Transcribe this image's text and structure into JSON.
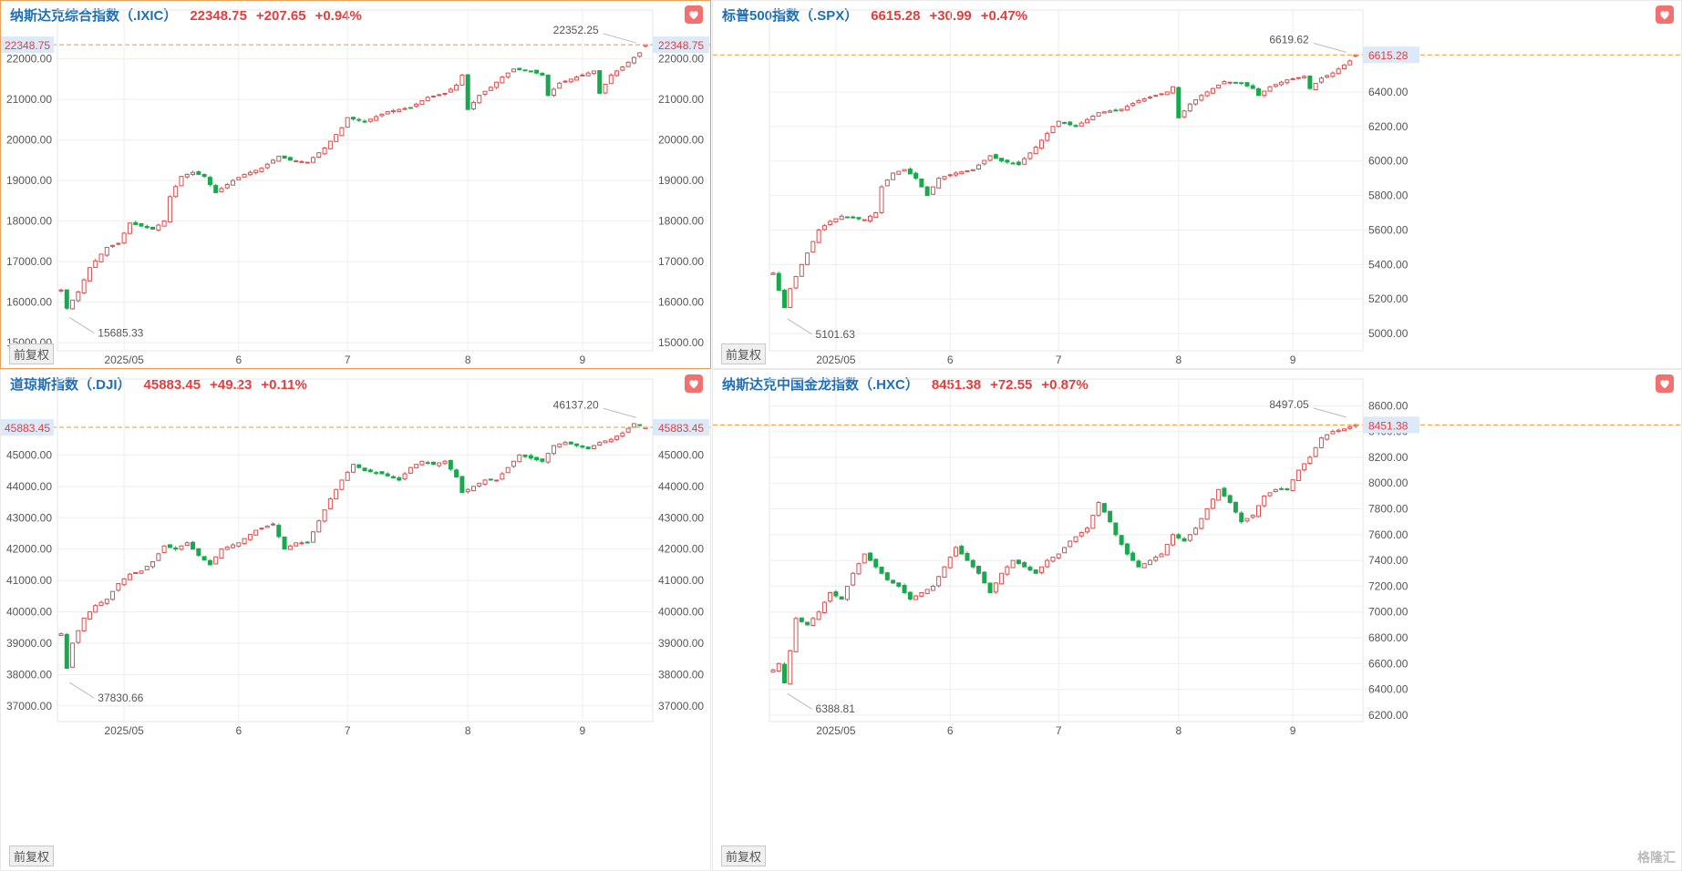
{
  "panels": [
    {
      "id": "ixic",
      "name": "纳斯达克综合指数（.IXIC）",
      "price": "22348.75",
      "change": "+207.65",
      "pct": "+0.94%",
      "fq_label": "前复权",
      "active": true
    },
    {
      "id": "spx",
      "name": "标普500指数（.SPX）",
      "price": "6615.28",
      "change": "+30.99",
      "pct": "+0.47%",
      "fq_label": "前复权",
      "active": false
    },
    {
      "id": "dji",
      "name": "道琼斯指数（.DJI）",
      "price": "45883.45",
      "change": "+49.23",
      "pct": "+0.11%",
      "fq_label": "前复权",
      "active": false
    },
    {
      "id": "hxc",
      "name": "纳斯达克中国金龙指数（.HXC）",
      "price": "8451.38",
      "change": "+72.55",
      "pct": "+0.87%",
      "fq_label": "前复权",
      "active": false,
      "logo": "格隆汇"
    }
  ],
  "chart_data": [
    {
      "type": "candlestick",
      "ylim": [
        14800,
        22800
      ],
      "y_ticks": [
        "15000.00",
        "16000.00",
        "17000.00",
        "18000.00",
        "19000.00",
        "20000.00",
        "21000.00",
        "22000.00"
      ],
      "x_ticks": [
        {
          "i": 11,
          "label": "2025/05"
        },
        {
          "i": 31,
          "label": "6"
        },
        {
          "i": 50,
          "label": "7"
        },
        {
          "i": 71,
          "label": "8"
        },
        {
          "i": 91,
          "label": "9"
        }
      ],
      "last": 22348.75,
      "last_label": "22348.75",
      "high": {
        "i": 101,
        "value": 22352.25,
        "label": "22352.25"
      },
      "low": {
        "i": 1,
        "value": 15685.33,
        "label": "15685.33"
      },
      "anchors": [
        [
          0,
          16300
        ],
        [
          1,
          15850
        ],
        [
          3,
          16250
        ],
        [
          5,
          16850
        ],
        [
          8,
          17350
        ],
        [
          10,
          17450
        ],
        [
          12,
          17950
        ],
        [
          16,
          17800
        ],
        [
          18,
          18000
        ],
        [
          19,
          18600
        ],
        [
          21,
          19100
        ],
        [
          23,
          19200
        ],
        [
          25,
          19100
        ],
        [
          27,
          18700
        ],
        [
          30,
          19000
        ],
        [
          32,
          19150
        ],
        [
          35,
          19300
        ],
        [
          38,
          19600
        ],
        [
          40,
          19500
        ],
        [
          43,
          19450
        ],
        [
          46,
          19800
        ],
        [
          49,
          20300
        ],
        [
          50,
          20550
        ],
        [
          53,
          20450
        ],
        [
          57,
          20700
        ],
        [
          61,
          20800
        ],
        [
          64,
          21050
        ],
        [
          67,
          21150
        ],
        [
          69,
          21350
        ],
        [
          70,
          21600
        ],
        [
          71,
          20750
        ],
        [
          73,
          21100
        ],
        [
          75,
          21300
        ],
        [
          77,
          21550
        ],
        [
          79,
          21750
        ],
        [
          82,
          21700
        ],
        [
          84,
          21600
        ],
        [
          85,
          21100
        ],
        [
          87,
          21400
        ],
        [
          90,
          21550
        ],
        [
          93,
          21700
        ],
        [
          94,
          21150
        ],
        [
          96,
          21600
        ],
        [
          98,
          21800
        ],
        [
          101,
          22150
        ],
        [
          102,
          22348.75
        ]
      ]
    },
    {
      "type": "candlestick",
      "ylim": [
        4900,
        6780
      ],
      "y_ticks": [
        "5000.00",
        "5200.00",
        "5400.00",
        "5600.00",
        "5800.00",
        "6000.00",
        "6200.00",
        "6400.00"
      ],
      "x_ticks": [
        {
          "i": 11,
          "label": "2025/05"
        },
        {
          "i": 31,
          "label": "6"
        },
        {
          "i": 50,
          "label": "7"
        },
        {
          "i": 71,
          "label": "8"
        },
        {
          "i": 91,
          "label": "9"
        }
      ],
      "last": 6615.28,
      "last_label": "6615.28",
      "high": {
        "i": 101,
        "value": 6619.62,
        "label": "6619.62"
      },
      "low": {
        "i": 2,
        "value": 5101.63,
        "label": "5101.63"
      },
      "anchors": [
        [
          0,
          5350
        ],
        [
          1,
          5250
        ],
        [
          2,
          5150
        ],
        [
          3,
          5260
        ],
        [
          5,
          5400
        ],
        [
          8,
          5600
        ],
        [
          10,
          5650
        ],
        [
          12,
          5680
        ],
        [
          16,
          5660
        ],
        [
          18,
          5700
        ],
        [
          19,
          5850
        ],
        [
          21,
          5930
        ],
        [
          23,
          5950
        ],
        [
          25,
          5900
        ],
        [
          27,
          5800
        ],
        [
          29,
          5900
        ],
        [
          32,
          5930
        ],
        [
          35,
          5950
        ],
        [
          38,
          6030
        ],
        [
          40,
          6000
        ],
        [
          43,
          5980
        ],
        [
          46,
          6080
        ],
        [
          49,
          6200
        ],
        [
          50,
          6230
        ],
        [
          53,
          6200
        ],
        [
          57,
          6280
        ],
        [
          61,
          6300
        ],
        [
          64,
          6350
        ],
        [
          67,
          6380
        ],
        [
          69,
          6400
        ],
        [
          70,
          6430
        ],
        [
          71,
          6250
        ],
        [
          73,
          6330
        ],
        [
          75,
          6380
        ],
        [
          77,
          6420
        ],
        [
          79,
          6460
        ],
        [
          82,
          6450
        ],
        [
          84,
          6420
        ],
        [
          85,
          6380
        ],
        [
          87,
          6430
        ],
        [
          90,
          6470
        ],
        [
          93,
          6490
        ],
        [
          94,
          6420
        ],
        [
          96,
          6480
        ],
        [
          98,
          6510
        ],
        [
          101,
          6580
        ],
        [
          102,
          6615.28
        ]
      ]
    },
    {
      "type": "candlestick",
      "ylim": [
        36500,
        46900
      ],
      "y_ticks": [
        "37000.00",
        "38000.00",
        "39000.00",
        "40000.00",
        "41000.00",
        "42000.00",
        "43000.00",
        "44000.00",
        "45000.00"
      ],
      "x_ticks": [
        {
          "i": 11,
          "label": "2025/05"
        },
        {
          "i": 31,
          "label": "6"
        },
        {
          "i": 50,
          "label": "7"
        },
        {
          "i": 71,
          "label": "8"
        },
        {
          "i": 91,
          "label": "9"
        }
      ],
      "last": 45883.45,
      "last_label": "45883.45",
      "high": {
        "i": 101,
        "value": 46137.2,
        "label": "46137.20"
      },
      "low": {
        "i": 1,
        "value": 37830.66,
        "label": "37830.66"
      },
      "anchors": [
        [
          0,
          39300
        ],
        [
          1,
          38200
        ],
        [
          2,
          39000
        ],
        [
          4,
          39800
        ],
        [
          6,
          40200
        ],
        [
          8,
          40400
        ],
        [
          10,
          40900
        ],
        [
          12,
          41200
        ],
        [
          14,
          41300
        ],
        [
          16,
          41600
        ],
        [
          18,
          42100
        ],
        [
          20,
          42000
        ],
        [
          22,
          42200
        ],
        [
          24,
          41800
        ],
        [
          26,
          41500
        ],
        [
          28,
          42000
        ],
        [
          31,
          42200
        ],
        [
          34,
          42600
        ],
        [
          37,
          42800
        ],
        [
          39,
          42000
        ],
        [
          41,
          42200
        ],
        [
          43,
          42200
        ],
        [
          45,
          42900
        ],
        [
          47,
          43600
        ],
        [
          49,
          44200
        ],
        [
          51,
          44700
        ],
        [
          53,
          44500
        ],
        [
          56,
          44400
        ],
        [
          59,
          44200
        ],
        [
          61,
          44600
        ],
        [
          63,
          44800
        ],
        [
          65,
          44700
        ],
        [
          67,
          44800
        ],
        [
          69,
          44300
        ],
        [
          70,
          43800
        ],
        [
          72,
          44000
        ],
        [
          74,
          44200
        ],
        [
          76,
          44200
        ],
        [
          78,
          44600
        ],
        [
          80,
          45000
        ],
        [
          82,
          44900
        ],
        [
          84,
          44800
        ],
        [
          86,
          45300
        ],
        [
          88,
          45400
        ],
        [
          90,
          45300
        ],
        [
          92,
          45200
        ],
        [
          94,
          45400
        ],
        [
          96,
          45500
        ],
        [
          98,
          45700
        ],
        [
          100,
          46000
        ],
        [
          102,
          45883.45
        ]
      ]
    },
    {
      "type": "candlestick",
      "ylim": [
        6150,
        8680
      ],
      "y_ticks": [
        "6200.00",
        "6400.00",
        "6600.00",
        "6800.00",
        "7000.00",
        "7200.00",
        "7400.00",
        "7600.00",
        "7800.00",
        "8000.00",
        "8200.00",
        "8400.00",
        "8600.00"
      ],
      "x_ticks": [
        {
          "i": 11,
          "label": "2025/05"
        },
        {
          "i": 31,
          "label": "6"
        },
        {
          "i": 50,
          "label": "7"
        },
        {
          "i": 71,
          "label": "8"
        },
        {
          "i": 91,
          "label": "9"
        }
      ],
      "last": 8451.38,
      "last_label": "8451.38",
      "high": {
        "i": 101,
        "value": 8497.05,
        "label": "8497.05"
      },
      "low": {
        "i": 2,
        "value": 6388.81,
        "label": "6388.81"
      },
      "anchors": [
        [
          0,
          6550
        ],
        [
          1,
          6600
        ],
        [
          2,
          6450
        ],
        [
          3,
          6700
        ],
        [
          4,
          6950
        ],
        [
          6,
          6900
        ],
        [
          8,
          7000
        ],
        [
          10,
          7150
        ],
        [
          12,
          7100
        ],
        [
          14,
          7300
        ],
        [
          16,
          7450
        ],
        [
          18,
          7350
        ],
        [
          20,
          7250
        ],
        [
          22,
          7200
        ],
        [
          24,
          7100
        ],
        [
          26,
          7150
        ],
        [
          28,
          7200
        ],
        [
          30,
          7350
        ],
        [
          32,
          7500
        ],
        [
          34,
          7400
        ],
        [
          36,
          7300
        ],
        [
          38,
          7150
        ],
        [
          40,
          7300
        ],
        [
          42,
          7400
        ],
        [
          44,
          7350
        ],
        [
          46,
          7300
        ],
        [
          48,
          7400
        ],
        [
          50,
          7450
        ],
        [
          52,
          7550
        ],
        [
          55,
          7650
        ],
        [
          57,
          7850
        ],
        [
          59,
          7700
        ],
        [
          60,
          7600
        ],
        [
          62,
          7450
        ],
        [
          64,
          7350
        ],
        [
          66,
          7400
        ],
        [
          68,
          7450
        ],
        [
          70,
          7600
        ],
        [
          72,
          7550
        ],
        [
          74,
          7650
        ],
        [
          76,
          7800
        ],
        [
          78,
          7950
        ],
        [
          80,
          7850
        ],
        [
          82,
          7700
        ],
        [
          84,
          7750
        ],
        [
          86,
          7900
        ],
        [
          88,
          7950
        ],
        [
          90,
          7950
        ],
        [
          92,
          8100
        ],
        [
          94,
          8200
        ],
        [
          96,
          8350
        ],
        [
          98,
          8400
        ],
        [
          100,
          8420
        ],
        [
          102,
          8451.38
        ]
      ]
    }
  ]
}
